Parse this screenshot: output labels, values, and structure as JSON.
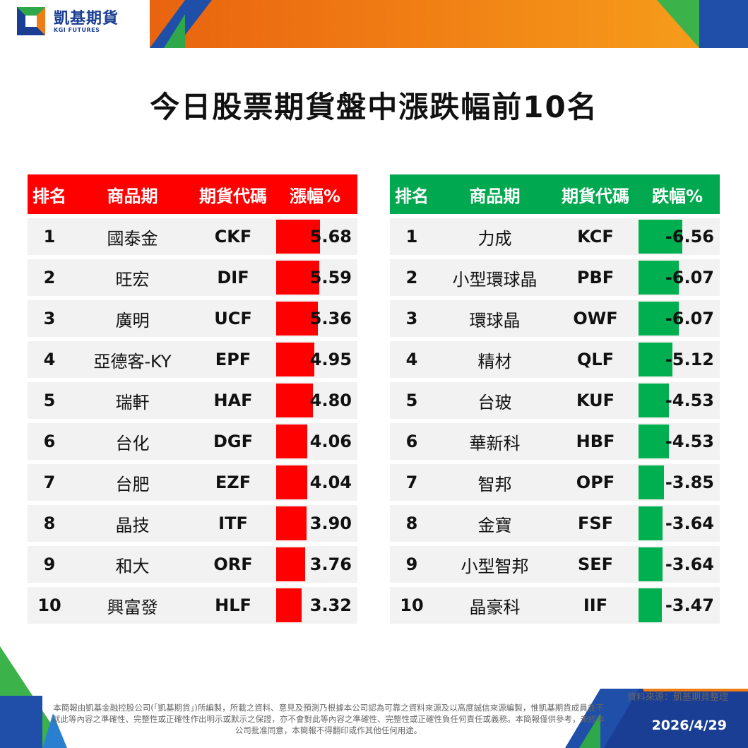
{
  "brand": {
    "name": "凱基期貨",
    "sub": "KGI FUTURES"
  },
  "title": "今日股票期貨盤中漲跌幅前10名",
  "gainers": {
    "headers": [
      "排名",
      "商品期",
      "期貨代碼",
      "漲幅%"
    ],
    "rows": [
      {
        "rank": "1",
        "name": "國泰金",
        "code": "CKF",
        "pct": "5.68",
        "value": 5.68
      },
      {
        "rank": "2",
        "name": "旺宏",
        "code": "DIF",
        "pct": "5.59",
        "value": 5.59
      },
      {
        "rank": "3",
        "name": "廣明",
        "code": "UCF",
        "pct": "5.36",
        "value": 5.36
      },
      {
        "rank": "4",
        "name": "亞德客-KY",
        "code": "EPF",
        "pct": "4.95",
        "value": 4.95
      },
      {
        "rank": "5",
        "name": "瑞軒",
        "code": "HAF",
        "pct": "4.80",
        "value": 4.8
      },
      {
        "rank": "6",
        "name": "台化",
        "code": "DGF",
        "pct": "4.06",
        "value": 4.06
      },
      {
        "rank": "7",
        "name": "台肥",
        "code": "EZF",
        "pct": "4.04",
        "value": 4.04
      },
      {
        "rank": "8",
        "name": "晶技",
        "code": "ITF",
        "pct": "3.90",
        "value": 3.9
      },
      {
        "rank": "9",
        "name": "和大",
        "code": "ORF",
        "pct": "3.76",
        "value": 3.76
      },
      {
        "rank": "10",
        "name": "興富發",
        "code": "HLF",
        "pct": "3.32",
        "value": 3.32
      }
    ]
  },
  "losers": {
    "headers": [
      "排名",
      "商品期",
      "期貨代碼",
      "跌幅%"
    ],
    "rows": [
      {
        "rank": "1",
        "name": "力成",
        "code": "KCF",
        "pct": "-6.56",
        "value": 6.56
      },
      {
        "rank": "2",
        "name": "小型環球晶",
        "code": "PBF",
        "pct": "-6.07",
        "value": 6.07
      },
      {
        "rank": "3",
        "name": "環球晶",
        "code": "OWF",
        "pct": "-6.07",
        "value": 6.07
      },
      {
        "rank": "4",
        "name": "精材",
        "code": "QLF",
        "pct": "-5.12",
        "value": 5.12
      },
      {
        "rank": "5",
        "name": "台玻",
        "code": "KUF",
        "pct": "-4.53",
        "value": 4.53
      },
      {
        "rank": "6",
        "name": "華新科",
        "code": "HBF",
        "pct": "-4.53",
        "value": 4.53
      },
      {
        "rank": "7",
        "name": "智邦",
        "code": "OPF",
        "pct": "-3.85",
        "value": 3.85
      },
      {
        "rank": "8",
        "name": "金寶",
        "code": "FSF",
        "pct": "-3.64",
        "value": 3.64
      },
      {
        "rank": "9",
        "name": "小型智邦",
        "code": "SEF",
        "pct": "-3.64",
        "value": 3.64
      },
      {
        "rank": "10",
        "name": "晶豪科",
        "code": "IIF",
        "pct": "-3.47",
        "value": 3.47
      }
    ]
  },
  "source": "資料來源：凱基期貨整理",
  "disclaimer": "本簡報由凱基金融控股公司(「凱基期貨」)所編製，所載之資料、意見及預測乃根據本公司認為可靠之資料來源及以高度誠信來源編製，惟凱基期貨成員並不就此等內容之準確性、完整性或正確性作出明示或默示之保證，亦不會對此等內容之準確性、完整性或正確性負任何責任或義務。本簡報僅供參考，未經本公司批准同意，本簡報不得翻印或作其他任何用途。",
  "date": "2026/4/29",
  "colors": {
    "up": "#ff0000",
    "down": "#00b050",
    "brand_blue": "#1a3e93",
    "orange": "#f07d14"
  }
}
